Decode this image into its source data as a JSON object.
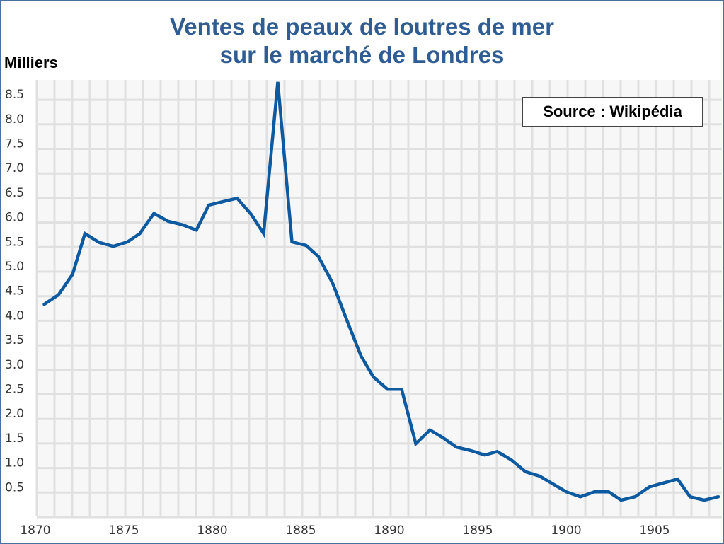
{
  "chart_data": {
    "type": "line",
    "title": [
      "Ventes de peaux de loutres de mer",
      "sur le marché de Londres"
    ],
    "ylabel": "Milliers",
    "xlabel": "",
    "annotation": "Source : Wikipédia",
    "ylim": [
      0,
      8.8
    ],
    "xlim": [
      1870,
      1909
    ],
    "grid": true,
    "legend": "none",
    "series_color": "#0d5aa0",
    "x_ticks": [
      "1870",
      "1875",
      "1880",
      "1885",
      "1890",
      "1895",
      "1900",
      "1905"
    ],
    "y_ticks": [
      "0.5",
      "1.0",
      "1.5",
      "2.0",
      "2.5",
      "3.0",
      "3.5",
      "4.0",
      "4.5",
      "5.0",
      "5.5",
      "6.0",
      "6.5",
      "7.0",
      "7.5",
      "8.0",
      "8.5"
    ],
    "x": [
      1870.5,
      1871.3,
      1872.1,
      1872.8,
      1873.6,
      1874.4,
      1875.2,
      1875.9,
      1876.7,
      1877.5,
      1878.3,
      1879.1,
      1879.8,
      1880.6,
      1881.4,
      1882.2,
      1882.9,
      1883.7,
      1884.5,
      1885.3,
      1886.0,
      1886.8,
      1887.6,
      1888.4,
      1889.1,
      1889.9,
      1890.7,
      1891.5,
      1892.3,
      1893.0,
      1893.8,
      1894.6,
      1895.4,
      1896.1,
      1896.9,
      1897.7,
      1898.5,
      1899.3,
      1900.0,
      1900.8,
      1901.6,
      1902.4,
      1903.1,
      1903.9,
      1904.7,
      1905.5,
      1906.3,
      1907.0,
      1907.8,
      1908.6
    ],
    "values": [
      4.22,
      4.41,
      4.83,
      5.66,
      5.48,
      5.4,
      5.49,
      5.66,
      6.07,
      5.91,
      5.84,
      5.73,
      6.24,
      6.31,
      6.38,
      6.05,
      5.66,
      8.75,
      5.49,
      5.42,
      5.19,
      4.65,
      3.9,
      3.17,
      2.74,
      2.49,
      2.49,
      1.38,
      1.66,
      1.51,
      1.31,
      1.24,
      1.15,
      1.22,
      1.05,
      0.81,
      0.72,
      0.55,
      0.4,
      0.3,
      0.4,
      0.4,
      0.23,
      0.3,
      0.5,
      0.58,
      0.66,
      0.3,
      0.23,
      0.3
    ]
  }
}
